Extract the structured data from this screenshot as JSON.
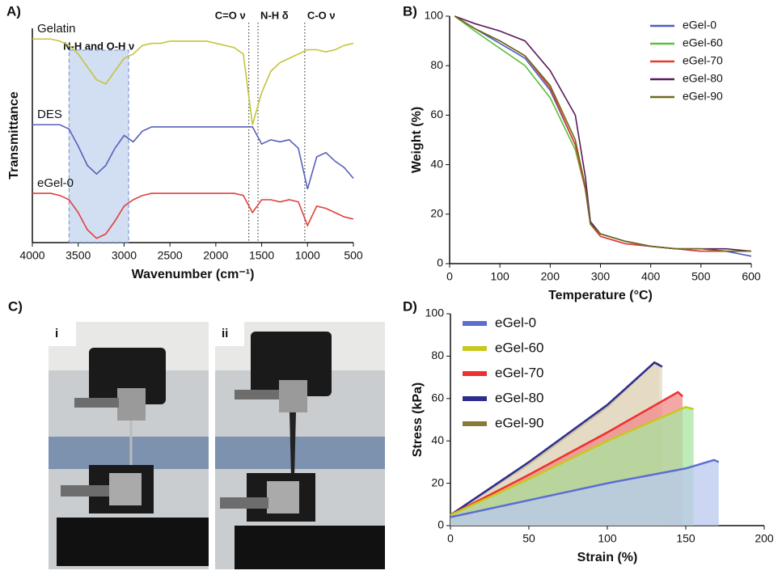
{
  "chart_data": [
    {
      "type": "line",
      "panel_label": "A)",
      "x_label": "Wavenumber (cm⁻¹)",
      "y_label": "Transmittance",
      "xlim": [
        4000,
        500
      ],
      "ylim": [
        0,
        100
      ],
      "xticks": [
        4000,
        3500,
        3000,
        2500,
        2000,
        1500,
        1000,
        500
      ],
      "x": [
        4000,
        3900,
        3800,
        3700,
        3600,
        3500,
        3400,
        3300,
        3200,
        3100,
        3000,
        2900,
        2800,
        2700,
        2600,
        2500,
        2400,
        2300,
        2200,
        2100,
        2000,
        1900,
        1800,
        1700,
        1600,
        1500,
        1400,
        1300,
        1200,
        1100,
        1000,
        900,
        800,
        700,
        600,
        500
      ],
      "series": [
        {
          "name": "Gelatin",
          "color": "#c4c43a",
          "values": [
            95,
            95,
            95,
            94,
            92,
            88,
            82,
            76,
            74,
            80,
            86,
            88,
            92,
            93,
            93,
            94,
            94,
            94,
            94,
            94,
            93,
            92,
            91,
            88,
            55,
            70,
            80,
            84,
            86,
            88,
            90,
            90,
            89,
            90,
            92,
            93
          ]
        },
        {
          "name": "DES",
          "color": "#5561b8",
          "values": [
            55,
            55,
            55,
            55,
            53,
            45,
            36,
            32,
            36,
            44,
            50,
            47,
            52,
            54,
            54,
            54,
            54,
            54,
            54,
            54,
            54,
            54,
            54,
            54,
            54,
            46,
            48,
            47,
            48,
            44,
            25,
            40,
            42,
            38,
            35,
            30
          ]
        },
        {
          "name": "eGel-0",
          "color": "#e0403a",
          "values": [
            23,
            23,
            23,
            22,
            20,
            14,
            6,
            2,
            4,
            10,
            17,
            20,
            22,
            23,
            23,
            23,
            23,
            23,
            23,
            23,
            23,
            23,
            23,
            22,
            14,
            20,
            20,
            19,
            20,
            19,
            8,
            17,
            16,
            14,
            12,
            11
          ]
        }
      ],
      "annotations": [
        {
          "text": "N-H and O-H ν",
          "x": [
            3600,
            2950
          ]
        },
        {
          "text": "C=O ν",
          "x": 1640
        },
        {
          "text": "N-H δ",
          "x": 1540
        },
        {
          "text": "C-O ν",
          "x": 1030
        }
      ]
    },
    {
      "type": "line",
      "panel_label": "B)",
      "x_label": "Temperature (°C)",
      "y_label": "Weight (%)",
      "xlim": [
        0,
        600
      ],
      "ylim": [
        0,
        100
      ],
      "xticks": [
        0,
        100,
        200,
        300,
        400,
        500,
        600
      ],
      "yticks": [
        0,
        20,
        40,
        60,
        80,
        100
      ],
      "legend": "top-right",
      "x": [
        10,
        50,
        100,
        150,
        200,
        250,
        270,
        280,
        300,
        350,
        400,
        450,
        500,
        550,
        600
      ],
      "series": [
        {
          "name": "eGel-0",
          "color": "#4a5fc1",
          "values": [
            100,
            95,
            89,
            83,
            70,
            48,
            30,
            16,
            11,
            8,
            7,
            6,
            5,
            5,
            3
          ]
        },
        {
          "name": "eGel-60",
          "color": "#5cbf3a",
          "values": [
            100,
            94,
            87,
            80,
            67,
            46,
            30,
            17,
            12,
            9,
            7,
            6,
            6,
            5,
            5
          ]
        },
        {
          "name": "eGel-70",
          "color": "#e53b32",
          "values": [
            100,
            95,
            90,
            84,
            71,
            48,
            30,
            16,
            11,
            8,
            7,
            6,
            5,
            5,
            5
          ]
        },
        {
          "name": "eGel-80",
          "color": "#5a1a5a",
          "values": [
            100,
            97,
            94,
            90,
            78,
            60,
            35,
            17,
            12,
            9,
            7,
            6,
            6,
            6,
            5
          ]
        },
        {
          "name": "eGel-90",
          "color": "#6b6b1e",
          "values": [
            100,
            95,
            90,
            84,
            72,
            50,
            31,
            16,
            12,
            9,
            7,
            6,
            6,
            5,
            5
          ]
        }
      ]
    },
    {
      "type": "area",
      "panel_label": "D)",
      "x_label": "Strain (%)",
      "y_label": "Stress (kPa)",
      "xlim": [
        0,
        200
      ],
      "ylim": [
        0,
        100
      ],
      "xticks": [
        0,
        50,
        100,
        150,
        200
      ],
      "yticks": [
        0,
        20,
        40,
        60,
        80,
        100
      ],
      "legend": "top-left",
      "series": [
        {
          "name": "eGel-0",
          "color": "#5b6fd0",
          "fill": "#b9c8ee",
          "x": [
            0,
            50,
            100,
            150,
            168,
            171
          ],
          "values": [
            4,
            12,
            20,
            27,
            31,
            30
          ]
        },
        {
          "name": "eGel-60",
          "color": "#c8c81e",
          "fill": "#a8e6a0",
          "x": [
            0,
            50,
            100,
            150,
            155
          ],
          "values": [
            5,
            22,
            40,
            56,
            55
          ]
        },
        {
          "name": "eGel-70",
          "color": "#ee3030",
          "fill": "#f08a8a",
          "x": [
            0,
            50,
            100,
            145,
            148
          ],
          "values": [
            5,
            24,
            44,
            63,
            61
          ]
        },
        {
          "name": "eGel-80",
          "color": "#2d2d8f",
          "fill": "#e3d7c0",
          "x": [
            0,
            50,
            100,
            130,
            135
          ],
          "values": [
            5,
            30,
            57,
            77,
            75
          ]
        },
        {
          "name": "eGel-90",
          "color": "#8a7a3a",
          "fill": "#e3d7c0",
          "x": [
            0,
            50,
            100,
            130,
            133
          ],
          "values": [
            5,
            29,
            56,
            77,
            76
          ]
        }
      ]
    }
  ],
  "photos": {
    "panel_label": "C)",
    "items": [
      "i",
      "ii"
    ]
  }
}
